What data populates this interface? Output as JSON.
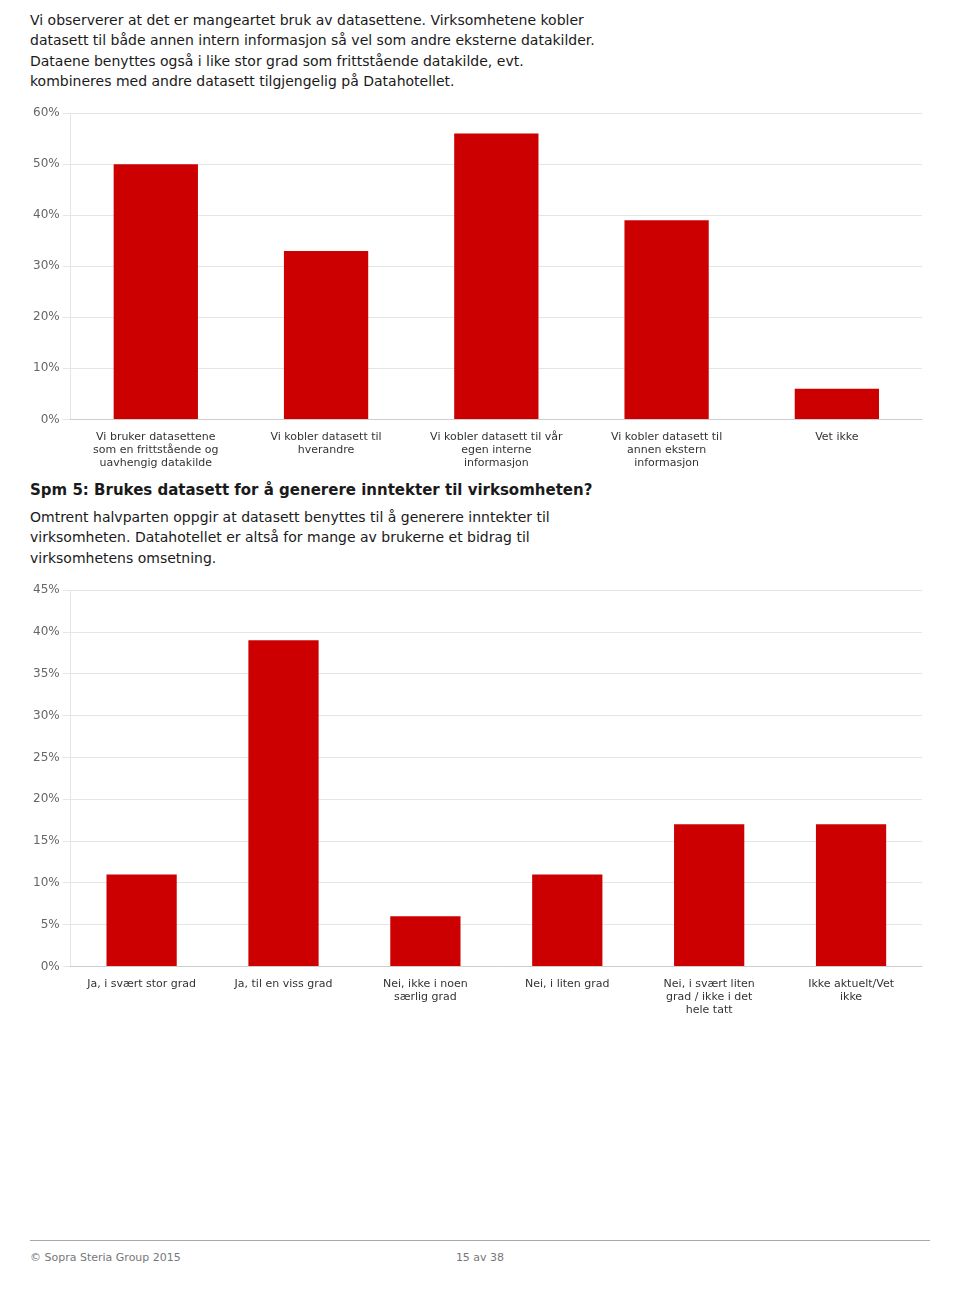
{
  "chart_data": [
    {
      "type": "bar",
      "annotations": [
        "Vi observerer at det er mangeartet bruk av datasettene. Virksomhetene kobler\ndatasett til både annen intern informasjon så vel som andre eksterne datakilder.\nDataene benyttes også i like stor grad som frittstående datakilde, evt.\nkombineres med andre datasett tilgjengelig på Datahotellet."
      ],
      "categories": [
        "Vi bruker datasettene\nsom en frittstående og\nuavhengig datakilde",
        "Vi kobler datasett til\nhverandre",
        "Vi kobler datasett til vår\negen interne\ninformasjon",
        "Vi kobler datasett til\nannen ekstern\ninformasjon",
        "Vet ikke"
      ],
      "values": [
        50,
        33,
        56,
        39,
        6
      ],
      "color": "#cc0000",
      "ylim": [
        0,
        60
      ],
      "yticks": [
        {
          "value": 0,
          "label": "0%"
        },
        {
          "value": 10,
          "label": "10%"
        },
        {
          "value": 20,
          "label": "20%"
        },
        {
          "value": 30,
          "label": "30%"
        },
        {
          "value": 40,
          "label": "40%"
        },
        {
          "value": 50,
          "label": "50%"
        },
        {
          "value": 60,
          "label": "60%"
        }
      ],
      "grid": true
    },
    {
      "type": "bar",
      "title": "Spm 5: Brukes datasett for å generere inntekter til virksomheten?",
      "subtitle": "Omtrent halvparten oppgir at datasett benyttes til å generere inntekter til\nvirksomheten. Datahotellet er altså for mange av brukerne et bidrag til\nvirksomhetens omsetning.",
      "annotations": [
        "© Sopra Steria Group 2015",
        "15 av 38"
      ],
      "categories": [
        "Ja, i svært stor grad",
        "Ja, til en viss grad",
        "Nei, ikke i noen\nsærlig grad",
        "Nei, i liten grad",
        "Nei, i svært liten\ngrad / ikke i det\nhele tatt",
        "Ikke aktuelt/Vet\nikke"
      ],
      "values": [
        11,
        39,
        6,
        11,
        17,
        17
      ],
      "color": "#cc0000",
      "ylim": [
        0,
        45
      ],
      "yticks": [
        {
          "value": 0,
          "label": "0%"
        },
        {
          "value": 5,
          "label": "5%"
        },
        {
          "value": 10,
          "label": "10%"
        },
        {
          "value": 15,
          "label": "15%"
        },
        {
          "value": 20,
          "label": "20%"
        },
        {
          "value": 25,
          "label": "25%"
        },
        {
          "value": 30,
          "label": "30%"
        },
        {
          "value": 35,
          "label": "35%"
        },
        {
          "value": 40,
          "label": "40%"
        },
        {
          "value": 45,
          "label": "45%"
        }
      ],
      "grid": true
    }
  ]
}
